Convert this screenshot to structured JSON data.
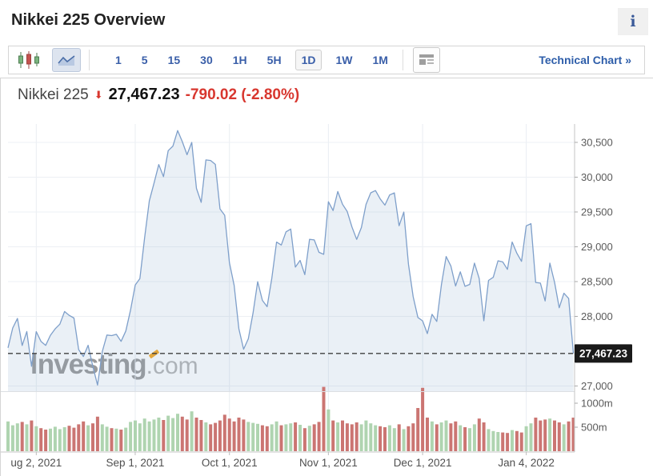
{
  "header": {
    "title": "Nikkei 225 Overview",
    "info_glyph": "i"
  },
  "toolbar": {
    "chart_type_buttons": [
      {
        "name": "candlestick-chart",
        "selected": false
      },
      {
        "name": "area-chart",
        "selected": true
      }
    ],
    "intervals": [
      {
        "label": "1",
        "selected": false
      },
      {
        "label": "5",
        "selected": false
      },
      {
        "label": "15",
        "selected": false
      },
      {
        "label": "30",
        "selected": false
      },
      {
        "label": "1H",
        "selected": false
      },
      {
        "label": "5H",
        "selected": false
      },
      {
        "label": "1D",
        "selected": true
      },
      {
        "label": "1W",
        "selected": false
      },
      {
        "label": "1M",
        "selected": false
      }
    ],
    "news_button_icon": "newspaper-icon",
    "technical_chart_label": "Technical Chart »"
  },
  "quote": {
    "name": "Nikkei 225",
    "direction": "down",
    "arrow": "⬇",
    "last": "27,467.23",
    "change": "-790.02",
    "change_pct": "(-2.80%)"
  },
  "watermark": {
    "brand": "Investing",
    "suffix": ".com"
  },
  "colors": {
    "accent_blue": "#3a5fa9",
    "link_blue": "#2d5da9",
    "negative_red": "#d8372f",
    "line": "#7e9fca",
    "area_fill": "rgba(126,159,202,0.16)",
    "volume_up": "#afd4b0",
    "volume_down": "#cb7572",
    "badge_bg": "#1a1a1a",
    "badge_text": "#ffffff",
    "grid": "#edf0f4",
    "axis_line": "#c6c6c6",
    "axis_text": "#5a5a5a",
    "dashed_line": "#3f3f3f",
    "watermark_orange": "#f7a823"
  },
  "chart_data": {
    "type": "area",
    "title": "Nikkei 225 daily close with volume",
    "legend": "none",
    "grid": true,
    "last_price": 27467.23,
    "last_price_label": "27,467.23",
    "price_ylim": [
      26925,
      30764
    ],
    "y_ticks": [
      {
        "label": "30,500",
        "value": 30500
      },
      {
        "label": "30,000",
        "value": 30000
      },
      {
        "label": "29,500",
        "value": 29500
      },
      {
        "label": "29,000",
        "value": 29000
      },
      {
        "label": "28,500",
        "value": 28500
      },
      {
        "label": "28,000",
        "value": 28000
      },
      {
        "label": "27,000",
        "value": 27000
      }
    ],
    "volume_ticks": [
      {
        "label": "1000m",
        "value": 1000
      },
      {
        "label": "500m",
        "value": 500
      }
    ],
    "x_ticks": [
      {
        "label": "ug 2, 2021",
        "index": 6
      },
      {
        "label": "Sep 1, 2021",
        "index": 27
      },
      {
        "label": "Oct 1, 2021",
        "index": 47
      },
      {
        "label": "Nov 1, 2021",
        "index": 68
      },
      {
        "label": "Dec 1, 2021",
        "index": 88
      },
      {
        "label": "Jan 4, 2022",
        "index": 110
      }
    ],
    "closes": [
      27548,
      27833,
      27970,
      27581,
      27782,
      27283,
      27781,
      27641,
      27584,
      27728,
      27820,
      27888,
      28070,
      28015,
      27977,
      27523,
      27424,
      27585,
      27281,
      27013,
      27494,
      27732,
      27724,
      27742,
      27641,
      27789,
      28089,
      28451,
      28543,
      29128,
      29659,
      29916,
      30181,
      30008,
      30381,
      30447,
      30670,
      30511,
      30323,
      30500,
      29839,
      29639,
      30248,
      30240,
      30183,
      29544,
      29452,
      28771,
      28444,
      27822,
      27528,
      27678,
      28048,
      28498,
      28230,
      28140,
      28550,
      29068,
      29025,
      29215,
      29255,
      28708,
      28804,
      28600,
      29106,
      29098,
      28920,
      28892,
      29647,
      29520,
      29794,
      29611,
      29507,
      29285,
      29106,
      29277,
      29609,
      29776,
      29808,
      29688,
      29598,
      29745,
      29774,
      29302,
      29499,
      28751,
      28283,
      27985,
      27935,
      27753,
      28029,
      27927,
      28455,
      28860,
      28725,
      28437,
      28640,
      28432,
      28459,
      28765,
      28545,
      27937,
      28517,
      28562,
      28798,
      28782,
      28676,
      29069,
      28906,
      28791,
      29301,
      29332,
      28487,
      28478,
      28222,
      28765,
      28489,
      28124,
      28333,
      28257,
      27467
    ],
    "volumes_m": [
      620,
      540,
      580,
      610,
      560,
      640,
      520,
      480,
      450,
      470,
      510,
      460,
      500,
      530,
      490,
      560,
      620,
      540,
      580,
      720,
      560,
      510,
      480,
      470,
      450,
      490,
      610,
      640,
      580,
      680,
      620,
      660,
      700,
      650,
      740,
      690,
      780,
      720,
      660,
      830,
      700,
      650,
      600,
      560,
      590,
      640,
      760,
      680,
      620,
      700,
      660,
      610,
      590,
      570,
      540,
      520,
      560,
      620,
      540,
      560,
      580,
      600,
      550,
      480,
      530,
      560,
      610,
      1340,
      870,
      640,
      600,
      640,
      580,
      560,
      600,
      560,
      640,
      580,
      540,
      520,
      500,
      540,
      480,
      560,
      460,
      520,
      580,
      900,
      1320,
      700,
      620,
      560,
      600,
      640,
      580,
      620,
      540,
      500,
      480,
      560,
      680,
      600,
      460,
      420,
      400,
      390,
      380,
      440,
      420,
      390,
      520,
      580,
      700,
      640,
      660,
      680,
      640,
      600,
      560,
      620,
      700
    ]
  }
}
